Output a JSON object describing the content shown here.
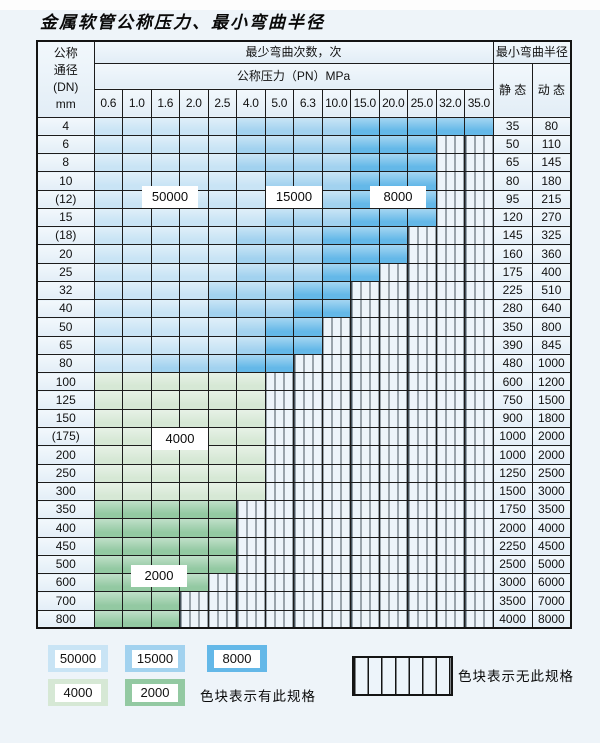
{
  "title": "金属软管公称压力、最小弯曲半径",
  "table": {
    "header": {
      "dn_label_lines": [
        "公称",
        "通径",
        "(DN)",
        "mm"
      ],
      "bend_cycles_label": "最少弯曲次数，次",
      "pressure_label": "公称压力（PN）MPa",
      "min_radius_label": "最小弯曲半径",
      "static_label": "静 态",
      "dynamic_label": "动 态",
      "pressure_columns": [
        "0.6",
        "1.0",
        "1.6",
        "2.0",
        "2.5",
        "4.0",
        "5.0",
        "6.3",
        "10.0",
        "15.0",
        "20.0",
        "25.0",
        "32.0",
        "35.0"
      ]
    },
    "zone_values": {
      "L": 50000,
      "M": 15000,
      "D": 8000,
      "g": 4000,
      "G": 2000,
      "x": null
    },
    "rows": [
      {
        "dn": "4",
        "cells": "LLLLLMMMMDDDDD",
        "static": "35",
        "dynamic": "80"
      },
      {
        "dn": "6",
        "cells": "LLLLLMMMMDDDxx",
        "static": "50",
        "dynamic": "110"
      },
      {
        "dn": "8",
        "cells": "LLLLLMMMMDDDxx",
        "static": "65",
        "dynamic": "145"
      },
      {
        "dn": "10",
        "cells": "LLLLLLMMMDDDxx",
        "static": "80",
        "dynamic": "180"
      },
      {
        "dn": "(12)",
        "cells": "LLLLLLMMMDDDxx",
        "static": "95",
        "dynamic": "215"
      },
      {
        "dn": "15",
        "cells": "LLLLLLMMMDDDxx",
        "static": "120",
        "dynamic": "270"
      },
      {
        "dn": "(18)",
        "cells": "LLLLLMMMDDDxxx",
        "static": "145",
        "dynamic": "325"
      },
      {
        "dn": "20",
        "cells": "LLLLLMMMDDDxxx",
        "static": "160",
        "dynamic": "360"
      },
      {
        "dn": "25",
        "cells": "LLLLLMMMDDxxxx",
        "static": "175",
        "dynamic": "400"
      },
      {
        "dn": "32",
        "cells": "LLLLMMMDDxxxxx",
        "static": "225",
        "dynamic": "510"
      },
      {
        "dn": "40",
        "cells": "LLLLMMMDDxxxxx",
        "static": "280",
        "dynamic": "640"
      },
      {
        "dn": "50",
        "cells": "LLLLLMDDxxxxxx",
        "static": "350",
        "dynamic": "800"
      },
      {
        "dn": "65",
        "cells": "LLLLLMDDxxxxxx",
        "static": "390",
        "dynamic": "845"
      },
      {
        "dn": "80",
        "cells": "LLMMMDDxxxxxxx",
        "static": "480",
        "dynamic": "1000"
      },
      {
        "dn": "100",
        "cells": "ggggggxxxxxxxx",
        "static": "600",
        "dynamic": "1200"
      },
      {
        "dn": "125",
        "cells": "ggggggxxxxxxxx",
        "static": "750",
        "dynamic": "1500"
      },
      {
        "dn": "150",
        "cells": "ggggggxxxxxxxx",
        "static": "900",
        "dynamic": "1800"
      },
      {
        "dn": "(175)",
        "cells": "ggggggxxxxxxxx",
        "static": "1000",
        "dynamic": "2000"
      },
      {
        "dn": "200",
        "cells": "ggggggxxxxxxxx",
        "static": "1000",
        "dynamic": "2000"
      },
      {
        "dn": "250",
        "cells": "ggggggxxxxxxxx",
        "static": "1250",
        "dynamic": "2500"
      },
      {
        "dn": "300",
        "cells": "ggggggxxxxxxxx",
        "static": "1500",
        "dynamic": "3000"
      },
      {
        "dn": "350",
        "cells": "GGGGGxxxxxxxxx",
        "static": "1750",
        "dynamic": "3500"
      },
      {
        "dn": "400",
        "cells": "GGGGGxxxxxxxxx",
        "static": "2000",
        "dynamic": "4000"
      },
      {
        "dn": "450",
        "cells": "GGGGGxxxxxxxxx",
        "static": "2250",
        "dynamic": "4500"
      },
      {
        "dn": "500",
        "cells": "GGGGGxxxxxxxxx",
        "static": "2500",
        "dynamic": "5000"
      },
      {
        "dn": "600",
        "cells": "GGGGxxxxxxxxxx",
        "static": "3000",
        "dynamic": "6000"
      },
      {
        "dn": "700",
        "cells": "GGGxxxxxxxxxxx",
        "static": "3500",
        "dynamic": "7000"
      },
      {
        "dn": "800",
        "cells": "GGGxxxxxxxxxxx",
        "static": "4000",
        "dynamic": "8000"
      }
    ]
  },
  "zone_labels": [
    {
      "text": "50000"
    },
    {
      "text": "15000"
    },
    {
      "text": "8000"
    },
    {
      "text": "4000"
    },
    {
      "text": "2000"
    }
  ],
  "legend": {
    "items": [
      {
        "label": "50000",
        "color_key": "c50000"
      },
      {
        "label": "15000",
        "color_key": "c15000"
      },
      {
        "label": "8000",
        "color_key": "c8000"
      },
      {
        "label": "4000",
        "color_key": "c4000"
      },
      {
        "label": "2000",
        "color_key": "c2000"
      }
    ],
    "has_spec_text": "色块表示有此规格",
    "no_spec_text": "色块表示无此规格"
  },
  "colors": {
    "c50000": "#c9e4f5",
    "c15000": "#a2d2ef",
    "c8000": "#64b8e8",
    "c4000": "#d6e8d5",
    "c2000": "#93c9a2",
    "plain_cell": "#e7f0f8",
    "hatch_bg": "#edf4fa",
    "border": "#1c1c1c",
    "page_bg": "#eef4f9"
  }
}
